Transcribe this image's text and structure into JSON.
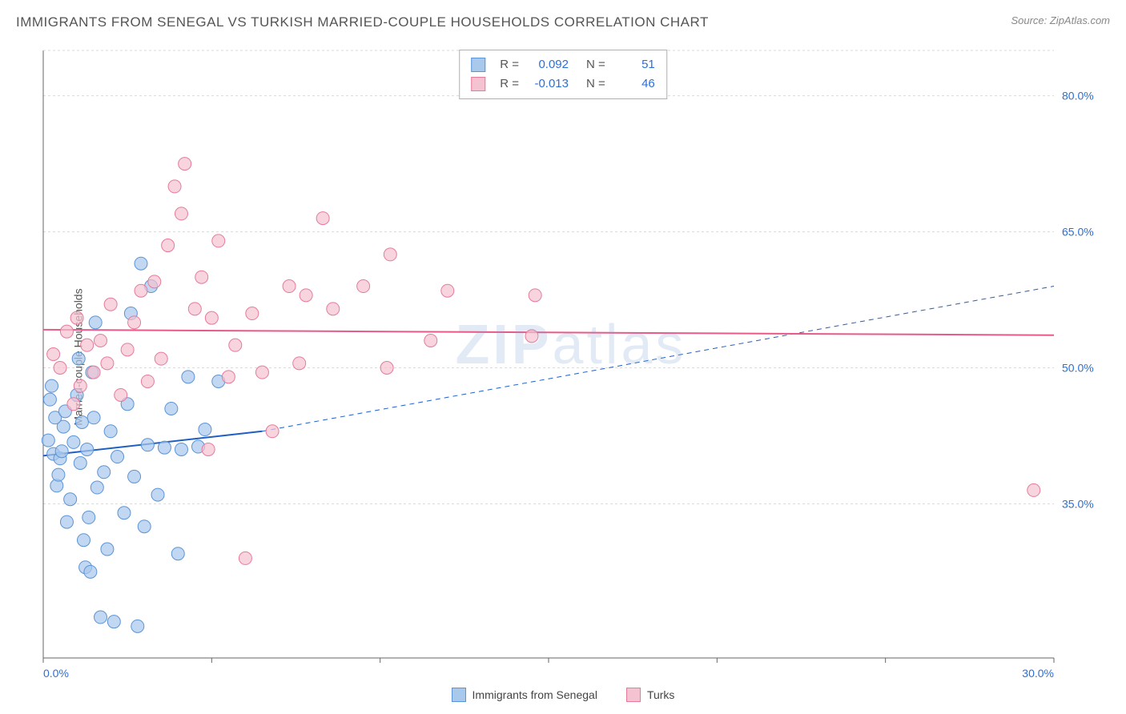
{
  "title": "IMMIGRANTS FROM SENEGAL VS TURKISH MARRIED-COUPLE HOUSEHOLDS CORRELATION CHART",
  "source": "Source: ZipAtlas.com",
  "watermark": "ZIPatlas",
  "ylabel": "Married-couple Households",
  "chart": {
    "type": "scatter",
    "xlim": [
      0,
      30
    ],
    "ylim": [
      18,
      85
    ],
    "grid_color": "#dadada",
    "axis_color": "#666666",
    "bg_color": "#ffffff",
    "x_ticks": [
      0,
      5,
      10,
      15,
      20,
      25,
      30
    ],
    "y_gridlines": [
      35,
      50,
      65,
      80
    ],
    "x_tick_labels": {
      "0": "0.0%",
      "30": "30.0%"
    },
    "y_tick_labels": {
      "35": "35.0%",
      "50": "50.0%",
      "65": "65.0%",
      "80": "80.0%"
    },
    "tick_label_color": "#2d6fd6",
    "tick_label_fontsize": 14,
    "marker_radius": 8,
    "marker_stroke_width": 1,
    "series": [
      {
        "name": "Immigrants from Senegal",
        "fill": "#a8c8ec",
        "stroke": "#5b94d6",
        "fill_opacity": 0.7,
        "trend": {
          "solid_x": [
            0,
            6.5
          ],
          "solid_y": [
            40.3,
            43.0
          ],
          "dash_x": [
            6.5,
            30
          ],
          "dash_y": [
            43.0,
            59.0
          ],
          "color": "#1f5fc4",
          "width": 2
        },
        "points": [
          [
            0.2,
            46.5
          ],
          [
            0.3,
            40.5
          ],
          [
            0.4,
            37.0
          ],
          [
            0.5,
            40.0
          ],
          [
            0.6,
            43.5
          ],
          [
            0.7,
            33.0
          ],
          [
            0.8,
            35.5
          ],
          [
            0.9,
            41.8
          ],
          [
            1.0,
            47.0
          ],
          [
            1.1,
            39.5
          ],
          [
            1.2,
            31.0
          ],
          [
            1.25,
            28.0
          ],
          [
            1.3,
            41.0
          ],
          [
            1.4,
            27.5
          ],
          [
            1.5,
            44.5
          ],
          [
            1.6,
            36.8
          ],
          [
            1.7,
            22.5
          ],
          [
            1.8,
            38.5
          ],
          [
            1.9,
            30.0
          ],
          [
            2.0,
            43.0
          ],
          [
            2.1,
            22.0
          ],
          [
            2.2,
            40.2
          ],
          [
            2.4,
            34.0
          ],
          [
            2.5,
            46.0
          ],
          [
            2.6,
            56.0
          ],
          [
            2.7,
            38.0
          ],
          [
            2.8,
            21.5
          ],
          [
            2.9,
            61.5
          ],
          [
            3.0,
            32.5
          ],
          [
            3.1,
            41.5
          ],
          [
            3.2,
            59.0
          ],
          [
            3.4,
            36.0
          ],
          [
            3.6,
            41.2
          ],
          [
            3.8,
            45.5
          ],
          [
            4.0,
            29.5
          ],
          [
            4.1,
            41.0
          ],
          [
            4.3,
            49.0
          ],
          [
            4.6,
            41.3
          ],
          [
            4.8,
            43.2
          ],
          [
            5.2,
            48.5
          ],
          [
            0.15,
            42.0
          ],
          [
            0.25,
            48.0
          ],
          [
            0.35,
            44.5
          ],
          [
            0.45,
            38.2
          ],
          [
            0.55,
            40.8
          ],
          [
            0.65,
            45.2
          ],
          [
            1.05,
            51.0
          ],
          [
            1.15,
            44.0
          ],
          [
            1.35,
            33.5
          ],
          [
            1.45,
            49.5
          ],
          [
            1.55,
            55.0
          ]
        ]
      },
      {
        "name": "Turks",
        "fill": "#f4c2d0",
        "stroke": "#e77a9a",
        "fill_opacity": 0.7,
        "trend": {
          "solid_x": [
            0,
            30
          ],
          "solid_y": [
            54.2,
            53.6
          ],
          "color": "#e85a88",
          "width": 2
        },
        "points": [
          [
            0.3,
            51.5
          ],
          [
            0.5,
            50.0
          ],
          [
            0.7,
            54.0
          ],
          [
            0.9,
            46.0
          ],
          [
            1.0,
            55.5
          ],
          [
            1.1,
            48.0
          ],
          [
            1.3,
            52.5
          ],
          [
            1.5,
            49.5
          ],
          [
            1.7,
            53.0
          ],
          [
            1.9,
            50.5
          ],
          [
            2.0,
            57.0
          ],
          [
            2.3,
            47.0
          ],
          [
            2.5,
            52.0
          ],
          [
            2.7,
            55.0
          ],
          [
            2.9,
            58.5
          ],
          [
            3.1,
            48.5
          ],
          [
            3.3,
            59.5
          ],
          [
            3.5,
            51.0
          ],
          [
            3.7,
            63.5
          ],
          [
            3.9,
            70.0
          ],
          [
            4.1,
            67.0
          ],
          [
            4.2,
            72.5
          ],
          [
            4.5,
            56.5
          ],
          [
            4.7,
            60.0
          ],
          [
            4.9,
            41.0
          ],
          [
            5.0,
            55.5
          ],
          [
            5.2,
            64.0
          ],
          [
            5.5,
            49.0
          ],
          [
            5.7,
            52.5
          ],
          [
            6.0,
            29.0
          ],
          [
            6.2,
            56.0
          ],
          [
            6.5,
            49.5
          ],
          [
            6.8,
            43.0
          ],
          [
            7.3,
            59.0
          ],
          [
            7.6,
            50.5
          ],
          [
            7.8,
            58.0
          ],
          [
            8.3,
            66.5
          ],
          [
            8.6,
            56.5
          ],
          [
            9.5,
            59.0
          ],
          [
            10.2,
            50.0
          ],
          [
            10.3,
            62.5
          ],
          [
            11.5,
            53.0
          ],
          [
            12.0,
            58.5
          ],
          [
            14.5,
            53.5
          ],
          [
            14.6,
            58.0
          ],
          [
            29.4,
            36.5
          ]
        ]
      }
    ]
  },
  "top_legend": {
    "rows": [
      {
        "swatch_fill": "#a8c8ec",
        "swatch_stroke": "#5b94d6",
        "r_label": "R =",
        "r_value": "0.092",
        "n_label": "N =",
        "n_value": "51"
      },
      {
        "swatch_fill": "#f4c2d0",
        "swatch_stroke": "#e77a9a",
        "r_label": "R =",
        "r_value": "-0.013",
        "n_label": "N =",
        "n_value": "46"
      }
    ]
  },
  "bottom_legend": [
    {
      "label": "Immigrants from Senegal",
      "fill": "#a8c8ec",
      "stroke": "#5b94d6"
    },
    {
      "label": "Turks",
      "fill": "#f4c2d0",
      "stroke": "#e77a9a"
    }
  ]
}
